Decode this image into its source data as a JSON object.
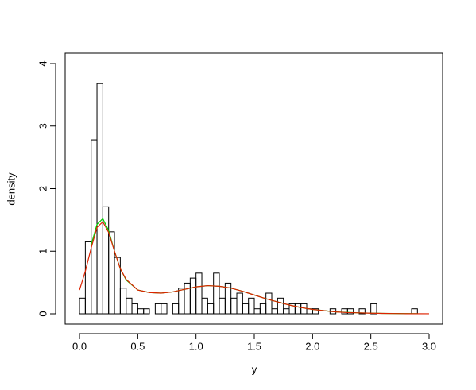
{
  "chart_data": {
    "type": "histogram",
    "xlabel": "y",
    "ylabel": "density",
    "bins": [
      0,
      0.05,
      0.1,
      0.15,
      0.2,
      0.25,
      0.3,
      0.35,
      0.4,
      0.45,
      0.5,
      0.55,
      0.6,
      0.65,
      0.7,
      0.75,
      0.8,
      0.85,
      0.9,
      0.95,
      1.0,
      1.05,
      1.1,
      1.15,
      1.2,
      1.25,
      1.3,
      1.35,
      1.4,
      1.45,
      1.5,
      1.55,
      1.6,
      1.65,
      1.7,
      1.75,
      1.8,
      1.85,
      1.9,
      1.95,
      2.0,
      2.05,
      2.1,
      2.15,
      2.2,
      2.25,
      2.3,
      2.35,
      2.4,
      2.45,
      2.5,
      2.55,
      2.6,
      2.65,
      2.7,
      2.75,
      2.8,
      2.85,
      2.9
    ],
    "values": [
      0.25,
      1.15,
      2.78,
      3.68,
      1.71,
      1.31,
      0.9,
      0.41,
      0.25,
      0.16,
      0.08,
      0.08,
      0,
      0.16,
      0.16,
      0,
      0.16,
      0.41,
      0.49,
      0.57,
      0.65,
      0.25,
      0.16,
      0.65,
      0.25,
      0.49,
      0.25,
      0.33,
      0.16,
      0.25,
      0.08,
      0.16,
      0.33,
      0.08,
      0.25,
      0.08,
      0.16,
      0.16,
      0.16,
      0.08,
      0.08,
      0,
      0,
      0.08,
      0,
      0.08,
      0.08,
      0,
      0.08,
      0,
      0.16,
      0,
      0,
      0,
      0,
      0,
      0,
      0.08
    ],
    "color": "#000000",
    "series": [
      {
        "color": "#00cc00",
        "x": [
          0.1,
          0.15,
          0.2,
          0.25,
          0.3,
          0.35,
          0.4,
          0.5,
          0.6,
          0.7,
          0.8,
          0.9,
          1.0,
          1.1,
          1.2,
          1.3,
          1.4,
          1.5,
          1.6,
          1.7,
          1.8,
          1.9,
          2.0,
          2.2,
          2.4,
          2.6,
          2.9
        ],
        "values": [
          1.1,
          1.43,
          1.52,
          1.33,
          1.0,
          0.72,
          0.54,
          0.38,
          0.34,
          0.33,
          0.35,
          0.39,
          0.43,
          0.45,
          0.44,
          0.41,
          0.36,
          0.3,
          0.24,
          0.19,
          0.14,
          0.1,
          0.07,
          0.03,
          0.015,
          0.006,
          0.002
        ]
      },
      {
        "color": "#dd2200",
        "x": [
          0,
          0.05,
          0.1,
          0.15,
          0.2,
          0.25,
          0.3,
          0.35,
          0.4,
          0.5,
          0.6,
          0.7,
          0.8,
          0.9,
          1.0,
          1.1,
          1.2,
          1.3,
          1.4,
          1.5,
          1.6,
          1.7,
          1.8,
          1.9,
          2.0,
          2.1,
          2.2,
          2.3,
          2.4,
          2.5,
          2.6,
          2.7,
          2.8,
          3.0
        ],
        "values": [
          0.38,
          0.68,
          1.05,
          1.38,
          1.47,
          1.3,
          1.0,
          0.72,
          0.55,
          0.38,
          0.34,
          0.33,
          0.35,
          0.39,
          0.43,
          0.45,
          0.44,
          0.41,
          0.36,
          0.3,
          0.24,
          0.19,
          0.14,
          0.1,
          0.07,
          0.05,
          0.03,
          0.02,
          0.015,
          0.01,
          0.006,
          0.004,
          0.002,
          0.001
        ]
      }
    ],
    "xlim": [
      -0.123,
      3.116
    ],
    "ylim": [
      -0.165,
      4.165
    ],
    "xticks": [
      {
        "value": 0,
        "label": "0.0"
      },
      0.5,
      {
        "value": 1,
        "label": "1.0"
      },
      1.5,
      {
        "value": 2,
        "label": "2.0"
      },
      2.5,
      {
        "value": 3,
        "label": "3.0"
      }
    ],
    "yticks": [
      0,
      1,
      2,
      3,
      4
    ]
  }
}
